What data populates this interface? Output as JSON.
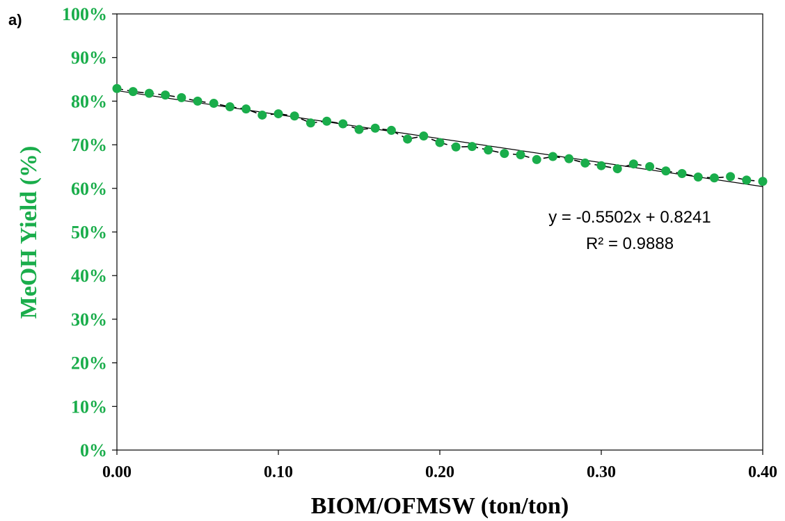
{
  "panel_label": "a)",
  "chart_data": {
    "type": "scatter",
    "title": "",
    "xlabel": "BIOM/OFMSW (ton/ton)",
    "ylabel": "MeOH Yield (%)",
    "xlim": [
      0,
      0.4
    ],
    "ylim": [
      0,
      1.0
    ],
    "x_ticks": [
      "0.00",
      "0.10",
      "0.20",
      "0.30",
      "0.40"
    ],
    "x_tick_values": [
      0,
      0.1,
      0.2,
      0.3,
      0.4
    ],
    "y_ticks": [
      "0%",
      "10%",
      "20%",
      "30%",
      "40%",
      "50%",
      "60%",
      "70%",
      "80%",
      "90%",
      "100%"
    ],
    "y_tick_values": [
      0,
      0.1,
      0.2,
      0.3,
      0.4,
      0.5,
      0.6,
      0.7,
      0.8,
      0.9,
      1.0
    ],
    "grid": false,
    "marker_color": "#1aad4b",
    "x": [
      0.0,
      0.01,
      0.02,
      0.03,
      0.04,
      0.05,
      0.06,
      0.07,
      0.08,
      0.09,
      0.1,
      0.11,
      0.12,
      0.13,
      0.14,
      0.15,
      0.16,
      0.17,
      0.18,
      0.19,
      0.2,
      0.21,
      0.22,
      0.23,
      0.24,
      0.25,
      0.26,
      0.27,
      0.28,
      0.29,
      0.3,
      0.31,
      0.32,
      0.33,
      0.34,
      0.35,
      0.36,
      0.37,
      0.38,
      0.39,
      0.4
    ],
    "y": [
      0.829,
      0.822,
      0.818,
      0.814,
      0.808,
      0.8,
      0.795,
      0.787,
      0.782,
      0.768,
      0.771,
      0.766,
      0.75,
      0.754,
      0.748,
      0.735,
      0.738,
      0.733,
      0.713,
      0.72,
      0.705,
      0.695,
      0.696,
      0.688,
      0.68,
      0.677,
      0.666,
      0.673,
      0.668,
      0.658,
      0.652,
      0.645,
      0.656,
      0.65,
      0.64,
      0.634,
      0.626,
      0.624,
      0.627,
      0.619,
      0.616
    ],
    "trendline": {
      "slope": -0.5502,
      "intercept": 0.8241,
      "equation": "y = -0.5502x + 0.8241",
      "r2": "R² = 0.9888"
    }
  }
}
